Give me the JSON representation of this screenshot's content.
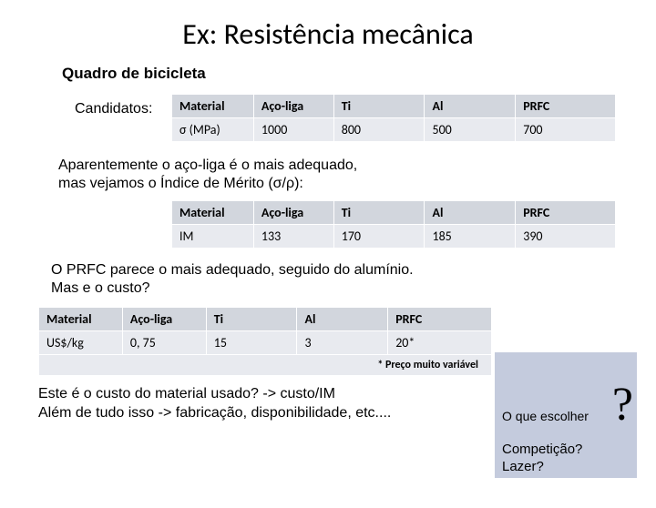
{
  "title": "Ex: Resistência mecânica",
  "subtitle": "Quadro de bicicleta",
  "candidatos_label": "Candidatos:",
  "table1": {
    "headers": [
      "Material",
      "Aço-liga",
      "Ti",
      "Al",
      "PRFC"
    ],
    "row_label": "σ (MPa)",
    "values": [
      "1000",
      "800",
      "500",
      "700"
    ],
    "header_bg": "#d2d6dd",
    "row_bg": "#e8eaef"
  },
  "para1_line1": "Aparentemente o aço-liga é o mais adequado,",
  "para1_line2": " mas vejamos o Índice de Mérito (σ/ρ):",
  "table2": {
    "headers": [
      "Material",
      "Aço-liga",
      "Ti",
      "Al",
      "PRFC"
    ],
    "row_label": "IM",
    "values": [
      "133",
      "170",
      "185",
      "390"
    ]
  },
  "para2_line1": "O PRFC parece o mais adequado, seguido do alumínio.",
  "para2_line2": "Mas e o custo?",
  "table3": {
    "headers": [
      "Material",
      "Aço-liga",
      "Ti",
      "Al",
      "PRFC"
    ],
    "row_label": "US$/kg",
    "values": [
      "0, 75",
      "15",
      "3",
      " 20*"
    ],
    "footnote": "* Preço muito variável"
  },
  "final_line1": "Este é o custo do material usado? -> custo/IM",
  "final_line2": "Além de tudo isso -> fabricação, disponibilidade, etc....",
  "callout": {
    "qmark": "?",
    "line1": "O que escolher",
    "line2a": "Competição?",
    "line2b": "Lazer?",
    "bg": "#c4cbdd"
  }
}
